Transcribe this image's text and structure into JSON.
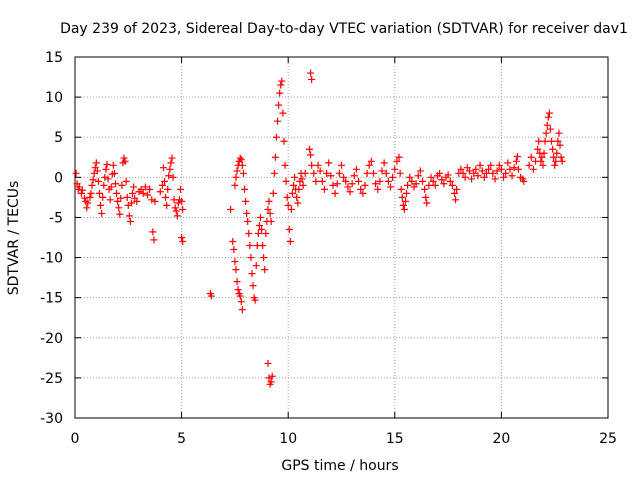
{
  "chart_data": {
    "type": "scatter",
    "title": "Day 239 of 2023, Sidereal Day-to-day VTEC variation (SDTVAR) for receiver dav1",
    "xlabel": "GPS time / hours",
    "ylabel": "SDTVAR / TECUs",
    "xlim": [
      0,
      25
    ],
    "ylim": [
      -30,
      15
    ],
    "x_ticks": [
      0,
      5,
      10,
      15,
      20,
      25
    ],
    "y_ticks": [
      -30,
      -25,
      -20,
      -15,
      -10,
      -5,
      0,
      5,
      10,
      15
    ],
    "x_tick_labels": [
      "0",
      "5",
      "10",
      "15",
      "20",
      "25"
    ],
    "y_tick_labels": [
      "-30",
      "-25",
      "-20",
      "-15",
      "-10",
      "-5",
      "0",
      "5",
      "10",
      "15"
    ],
    "grid": true,
    "marker": "+",
    "series": [
      {
        "name": "SDTVAR",
        "color": "#ff0000",
        "points": [
          [
            0.05,
            0.5
          ],
          [
            0.1,
            -0.8
          ],
          [
            0.15,
            -1.5
          ],
          [
            0.2,
            -1.2
          ],
          [
            0.3,
            -2.0
          ],
          [
            0.35,
            -1.6
          ],
          [
            0.45,
            -2.6
          ],
          [
            0.5,
            -3.0
          ],
          [
            0.55,
            -3.8
          ],
          [
            0.6,
            -3.2
          ],
          [
            0.7,
            -2.5
          ],
          [
            0.75,
            -2.0
          ],
          [
            0.8,
            -1.0
          ],
          [
            0.85,
            -0.3
          ],
          [
            0.9,
            0.5
          ],
          [
            0.95,
            1.2
          ],
          [
            1.0,
            1.8
          ],
          [
            1.05,
            0.8
          ],
          [
            1.1,
            -0.5
          ],
          [
            1.15,
            -2.0
          ],
          [
            1.2,
            -3.5
          ],
          [
            1.25,
            -4.5
          ],
          [
            1.3,
            -2.5
          ],
          [
            1.35,
            -1.0
          ],
          [
            1.4,
            0.0
          ],
          [
            1.45,
            1.0
          ],
          [
            1.5,
            1.6
          ],
          [
            1.55,
            -0.2
          ],
          [
            1.6,
            -1.5
          ],
          [
            1.65,
            -2.8
          ],
          [
            1.7,
            -1.2
          ],
          [
            1.75,
            0.4
          ],
          [
            1.8,
            1.5
          ],
          [
            1.85,
            0.5
          ],
          [
            1.9,
            -0.8
          ],
          [
            1.95,
            -2.0
          ],
          [
            2.0,
            -3.0
          ],
          [
            2.05,
            -3.8
          ],
          [
            2.1,
            -4.6
          ],
          [
            2.15,
            -2.6
          ],
          [
            2.2,
            -1.0
          ],
          [
            2.25,
            1.8
          ],
          [
            2.3,
            2.4
          ],
          [
            2.35,
            2.0
          ],
          [
            2.4,
            -0.5
          ],
          [
            2.45,
            -2.5
          ],
          [
            2.5,
            -3.5
          ],
          [
            2.55,
            -4.8
          ],
          [
            2.6,
            -5.5
          ],
          [
            2.65,
            -3.2
          ],
          [
            2.7,
            -2.0
          ],
          [
            2.75,
            -1.2
          ],
          [
            2.8,
            -2.6
          ],
          [
            2.9,
            -3.0
          ],
          [
            3.0,
            -1.8
          ],
          [
            3.1,
            -1.5
          ],
          [
            3.2,
            -2.0
          ],
          [
            3.3,
            -1.2
          ],
          [
            3.4,
            -2.2
          ],
          [
            3.5,
            -1.5
          ],
          [
            3.6,
            -2.8
          ],
          [
            3.65,
            -6.8
          ],
          [
            3.7,
            -7.8
          ],
          [
            3.75,
            -3.0
          ],
          [
            4.0,
            -1.8
          ],
          [
            4.1,
            -1.0
          ],
          [
            4.15,
            1.2
          ],
          [
            4.2,
            -0.5
          ],
          [
            4.25,
            -2.5
          ],
          [
            4.3,
            -3.5
          ],
          [
            4.35,
            -1.5
          ],
          [
            4.4,
            0.2
          ],
          [
            4.45,
            1.0
          ],
          [
            4.5,
            1.8
          ],
          [
            4.55,
            2.4
          ],
          [
            4.6,
            0.0
          ],
          [
            4.65,
            -2.8
          ],
          [
            4.7,
            -3.8
          ],
          [
            4.75,
            -4.2
          ],
          [
            4.8,
            -4.8
          ],
          [
            4.85,
            -3.2
          ],
          [
            4.9,
            -2.8
          ],
          [
            4.95,
            -1.5
          ],
          [
            5.0,
            -3.0
          ],
          [
            5.05,
            -4.0
          ],
          [
            5.0,
            -7.5
          ],
          [
            5.05,
            -8.0
          ],
          [
            6.35,
            -14.5
          ],
          [
            6.4,
            -14.8
          ],
          [
            7.3,
            -4.0
          ],
          [
            7.4,
            -8.0
          ],
          [
            7.45,
            -9.0
          ],
          [
            7.5,
            -10.5
          ],
          [
            7.55,
            -11.5
          ],
          [
            7.6,
            -13.0
          ],
          [
            7.65,
            -14.0
          ],
          [
            7.7,
            -14.5
          ],
          [
            7.75,
            -14.8
          ],
          [
            7.8,
            -15.5
          ],
          [
            7.85,
            -16.5
          ],
          [
            7.5,
            -1.0
          ],
          [
            7.55,
            0.0
          ],
          [
            7.6,
            0.8
          ],
          [
            7.65,
            1.5
          ],
          [
            7.7,
            2.0
          ],
          [
            7.75,
            2.4
          ],
          [
            7.8,
            2.2
          ],
          [
            7.85,
            1.5
          ],
          [
            7.9,
            0.5
          ],
          [
            7.95,
            -1.5
          ],
          [
            8.0,
            -3.0
          ],
          [
            8.05,
            -4.5
          ],
          [
            8.1,
            -5.5
          ],
          [
            8.15,
            -7.0
          ],
          [
            8.2,
            -8.5
          ],
          [
            8.25,
            -10.0
          ],
          [
            8.3,
            -12.0
          ],
          [
            8.35,
            -13.5
          ],
          [
            8.4,
            -15.0
          ],
          [
            8.45,
            -15.3
          ],
          [
            8.5,
            -11.0
          ],
          [
            8.55,
            -8.5
          ],
          [
            8.6,
            -7.0
          ],
          [
            8.65,
            -6.0
          ],
          [
            8.7,
            -5.0
          ],
          [
            8.75,
            -6.5
          ],
          [
            8.8,
            -8.5
          ],
          [
            8.85,
            -10.0
          ],
          [
            8.9,
            -11.5
          ],
          [
            8.95,
            -7.0
          ],
          [
            9.0,
            -5.5
          ],
          [
            9.05,
            -4.0
          ],
          [
            9.1,
            -3.0
          ],
          [
            9.15,
            -4.5
          ],
          [
            9.2,
            -5.5
          ],
          [
            9.05,
            -23.2
          ],
          [
            9.1,
            -25.0
          ],
          [
            9.15,
            -25.8
          ],
          [
            9.2,
            -25.5
          ],
          [
            9.25,
            -24.8
          ],
          [
            9.3,
            -2.0
          ],
          [
            9.35,
            0.5
          ],
          [
            9.4,
            2.5
          ],
          [
            9.45,
            5.0
          ],
          [
            9.5,
            7.0
          ],
          [
            9.55,
            9.0
          ],
          [
            9.6,
            10.5
          ],
          [
            9.65,
            11.5
          ],
          [
            9.7,
            12.0
          ],
          [
            9.75,
            8.0
          ],
          [
            9.8,
            4.5
          ],
          [
            9.85,
            1.5
          ],
          [
            9.9,
            -0.5
          ],
          [
            9.95,
            -2.5
          ],
          [
            10.0,
            -3.5
          ],
          [
            10.05,
            -6.5
          ],
          [
            10.1,
            -8.0
          ],
          [
            10.15,
            -4.0
          ],
          [
            10.2,
            -2.0
          ],
          [
            10.25,
            -1.0
          ],
          [
            10.3,
            0.0
          ],
          [
            10.35,
            -1.5
          ],
          [
            10.4,
            -2.5
          ],
          [
            10.45,
            -3.2
          ],
          [
            10.5,
            -1.5
          ],
          [
            10.55,
            -0.5
          ],
          [
            10.6,
            0.5
          ],
          [
            10.65,
            -0.2
          ],
          [
            10.7,
            -1.0
          ],
          [
            10.8,
            0.5
          ],
          [
            11.05,
            13.0
          ],
          [
            11.1,
            12.2
          ],
          [
            11.0,
            3.5
          ],
          [
            11.05,
            2.8
          ],
          [
            11.1,
            1.5
          ],
          [
            11.2,
            0.5
          ],
          [
            11.3,
            -0.5
          ],
          [
            11.4,
            1.5
          ],
          [
            11.5,
            0.8
          ],
          [
            11.6,
            -0.5
          ],
          [
            11.7,
            -1.5
          ],
          [
            11.8,
            0.5
          ],
          [
            11.9,
            1.8
          ],
          [
            12.0,
            0.2
          ],
          [
            12.1,
            -1.0
          ],
          [
            12.2,
            -2.0
          ],
          [
            12.3,
            -0.8
          ],
          [
            12.4,
            0.5
          ],
          [
            12.5,
            1.5
          ],
          [
            12.6,
            0.0
          ],
          [
            12.7,
            -0.5
          ],
          [
            12.8,
            -1.2
          ],
          [
            12.9,
            -1.8
          ],
          [
            13.0,
            -0.8
          ],
          [
            13.1,
            0.2
          ],
          [
            13.2,
            1.0
          ],
          [
            13.3,
            -0.5
          ],
          [
            13.4,
            -1.5
          ],
          [
            13.5,
            -2.0
          ],
          [
            13.6,
            -1.0
          ],
          [
            13.7,
            0.5
          ],
          [
            13.8,
            1.5
          ],
          [
            13.9,
            2.0
          ],
          [
            14.0,
            0.5
          ],
          [
            14.1,
            -0.8
          ],
          [
            14.2,
            -1.5
          ],
          [
            14.3,
            -0.5
          ],
          [
            14.4,
            0.8
          ],
          [
            14.5,
            1.8
          ],
          [
            14.6,
            0.5
          ],
          [
            14.7,
            -0.5
          ],
          [
            14.8,
            -1.2
          ],
          [
            14.9,
            0.0
          ],
          [
            15.0,
            1.0
          ],
          [
            15.1,
            2.0
          ],
          [
            15.2,
            2.5
          ],
          [
            15.25,
            0.5
          ],
          [
            15.3,
            -1.5
          ],
          [
            15.35,
            -2.5
          ],
          [
            15.4,
            -3.5
          ],
          [
            15.45,
            -4.0
          ],
          [
            15.5,
            -3.0
          ],
          [
            15.55,
            -2.0
          ],
          [
            15.6,
            -1.0
          ],
          [
            15.7,
            0.0
          ],
          [
            15.8,
            -0.5
          ],
          [
            15.9,
            -1.2
          ],
          [
            16.0,
            -0.8
          ],
          [
            16.1,
            0.2
          ],
          [
            16.2,
            0.8
          ],
          [
            16.3,
            -0.5
          ],
          [
            16.4,
            -1.5
          ],
          [
            16.45,
            -2.5
          ],
          [
            16.5,
            -3.2
          ],
          [
            16.6,
            -1.0
          ],
          [
            16.7,
            0.0
          ],
          [
            16.8,
            -0.5
          ],
          [
            16.9,
            -1.0
          ],
          [
            17.0,
            0.2
          ],
          [
            17.1,
            0.5
          ],
          [
            17.2,
            -0.3
          ],
          [
            17.3,
            -0.8
          ],
          [
            17.4,
            0.0
          ],
          [
            17.5,
            0.3
          ],
          [
            17.6,
            -0.5
          ],
          [
            17.7,
            -1.0
          ],
          [
            17.8,
            -2.0
          ],
          [
            17.85,
            -2.8
          ],
          [
            17.9,
            -1.5
          ],
          [
            18.0,
            0.5
          ],
          [
            18.1,
            1.0
          ],
          [
            18.2,
            0.5
          ],
          [
            18.3,
            0.0
          ],
          [
            18.4,
            1.2
          ],
          [
            18.5,
            0.8
          ],
          [
            18.6,
            -0.2
          ],
          [
            18.7,
            0.5
          ],
          [
            18.8,
            1.0
          ],
          [
            18.9,
            0.2
          ],
          [
            19.0,
            1.5
          ],
          [
            19.1,
            0.8
          ],
          [
            19.2,
            0.0
          ],
          [
            19.3,
            0.5
          ],
          [
            19.4,
            1.0
          ],
          [
            19.5,
            1.5
          ],
          [
            19.6,
            0.5
          ],
          [
            19.7,
            -0.2
          ],
          [
            19.8,
            0.8
          ],
          [
            19.9,
            1.5
          ],
          [
            20.0,
            1.0
          ],
          [
            20.1,
            0.0
          ],
          [
            20.2,
            0.5
          ],
          [
            20.3,
            1.8
          ],
          [
            20.4,
            1.0
          ],
          [
            20.5,
            0.2
          ],
          [
            20.6,
            1.2
          ],
          [
            20.7,
            2.0
          ],
          [
            20.75,
            2.6
          ],
          [
            20.8,
            1.0
          ],
          [
            20.9,
            0.0
          ],
          [
            21.0,
            -0.2
          ],
          [
            21.05,
            -0.5
          ],
          [
            21.3,
            1.5
          ],
          [
            21.4,
            2.5
          ],
          [
            21.5,
            1.0
          ],
          [
            21.6,
            2.0
          ],
          [
            21.7,
            3.5
          ],
          [
            21.75,
            4.5
          ],
          [
            21.8,
            3.0
          ],
          [
            21.85,
            2.0
          ],
          [
            21.9,
            2.5
          ],
          [
            21.95,
            1.5
          ],
          [
            22.0,
            3.0
          ],
          [
            22.05,
            4.5
          ],
          [
            22.1,
            5.5
          ],
          [
            22.15,
            6.5
          ],
          [
            22.2,
            7.5
          ],
          [
            22.25,
            8.0
          ],
          [
            22.3,
            6.0
          ],
          [
            22.35,
            4.5
          ],
          [
            22.4,
            3.5
          ],
          [
            22.45,
            2.5
          ],
          [
            22.5,
            1.5
          ],
          [
            22.55,
            2.0
          ],
          [
            22.6,
            3.0
          ],
          [
            22.65,
            4.5
          ],
          [
            22.7,
            5.5
          ],
          [
            22.75,
            4.0
          ],
          [
            22.8,
            2.5
          ],
          [
            22.85,
            2.0
          ]
        ]
      }
    ]
  }
}
